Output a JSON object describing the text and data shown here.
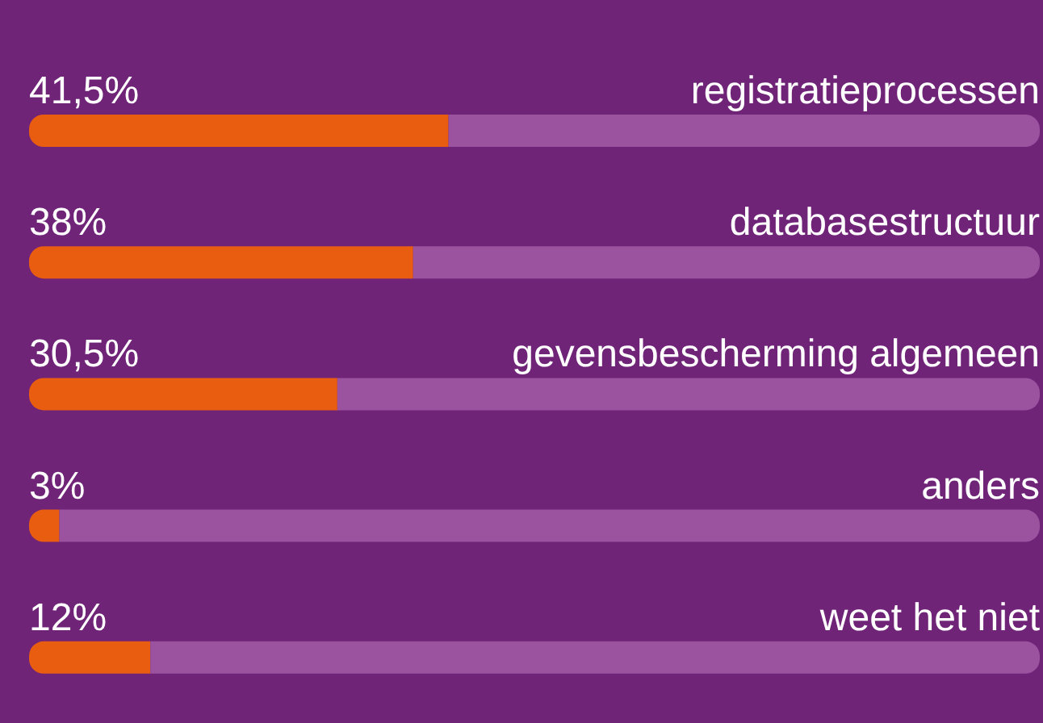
{
  "chart_data": {
    "type": "bar",
    "orientation": "horizontal",
    "stacked": true,
    "categories": [
      "registratieprocessen",
      "databasestructuur",
      "gevensbescherming algemeen",
      "anders",
      "weet het niet"
    ],
    "series": [
      {
        "color": "#e95d10",
        "values": [
          41.5,
          38,
          30.5,
          3,
          12
        ],
        "value_labels": [
          "41,5%",
          "38%",
          "30,5%",
          "3%",
          "12%"
        ]
      },
      {
        "color": "#9b529f",
        "values": [
          58.5,
          62,
          69.5,
          97,
          88
        ]
      }
    ],
    "xlim": [
      0,
      100
    ],
    "tick_labels": false
  }
}
